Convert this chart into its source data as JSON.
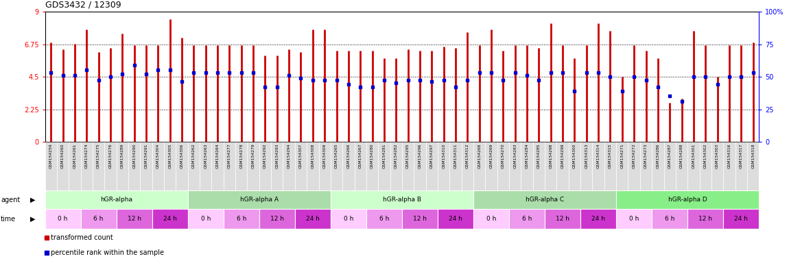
{
  "title": "GDS3432 / 12309",
  "samples": [
    "GSM154259",
    "GSM154260",
    "GSM154261",
    "GSM154274",
    "GSM154275",
    "GSM154276",
    "GSM154289",
    "GSM154290",
    "GSM154291",
    "GSM154304",
    "GSM154305",
    "GSM154306",
    "GSM154262",
    "GSM154263",
    "GSM154264",
    "GSM154277",
    "GSM154278",
    "GSM154279",
    "GSM154292",
    "GSM154293",
    "GSM154294",
    "GSM154307",
    "GSM154308",
    "GSM154309",
    "GSM154265",
    "GSM154266",
    "GSM154267",
    "GSM154280",
    "GSM154281",
    "GSM154282",
    "GSM154295",
    "GSM154296",
    "GSM154297",
    "GSM154310",
    "GSM154311",
    "GSM154312",
    "GSM154268",
    "GSM154269",
    "GSM154270",
    "GSM154283",
    "GSM154284",
    "GSM154285",
    "GSM154298",
    "GSM154299",
    "GSM154300",
    "GSM154313",
    "GSM154314",
    "GSM154315",
    "GSM154271",
    "GSM154272",
    "GSM154273",
    "GSM154286",
    "GSM154287",
    "GSM154288",
    "GSM154301",
    "GSM154302",
    "GSM154303",
    "GSM154316",
    "GSM154317",
    "GSM154318"
  ],
  "red_values": [
    6.9,
    6.4,
    6.8,
    7.8,
    6.2,
    6.5,
    7.5,
    6.7,
    6.7,
    6.7,
    8.5,
    7.2,
    6.7,
    6.7,
    6.7,
    6.7,
    6.7,
    6.7,
    6.0,
    6.0,
    6.4,
    6.2,
    7.8,
    7.8,
    6.3,
    6.3,
    6.3,
    6.3,
    5.8,
    5.8,
    6.4,
    6.3,
    6.3,
    6.6,
    6.5,
    7.6,
    6.7,
    7.8,
    6.3,
    6.7,
    6.7,
    6.5,
    8.2,
    6.7,
    5.8,
    6.7,
    8.2,
    7.7,
    4.5,
    6.7,
    6.3,
    5.8,
    2.7,
    3.0,
    7.7,
    6.7,
    4.5,
    6.7,
    6.7,
    6.9
  ],
  "blue_values": [
    4.8,
    4.6,
    4.6,
    5.0,
    4.3,
    4.5,
    4.7,
    5.3,
    4.7,
    5.0,
    5.0,
    4.2,
    4.8,
    4.8,
    4.8,
    4.8,
    4.8,
    4.8,
    3.8,
    3.8,
    4.6,
    4.4,
    4.3,
    4.3,
    4.3,
    4.0,
    3.8,
    3.8,
    4.3,
    4.1,
    4.3,
    4.3,
    4.2,
    4.3,
    3.8,
    4.3,
    4.8,
    4.8,
    4.3,
    4.8,
    4.6,
    4.3,
    4.8,
    4.8,
    3.5,
    4.8,
    4.8,
    4.5,
    3.5,
    4.5,
    4.3,
    3.8,
    3.2,
    2.8,
    4.5,
    4.5,
    4.0,
    4.5,
    4.5,
    4.8
  ],
  "agents": [
    "hGR-alpha",
    "hGR-alpha A",
    "hGR-alpha B",
    "hGR-alpha C",
    "hGR-alpha D"
  ],
  "agent_spans": [
    12,
    12,
    12,
    12,
    12
  ],
  "times": [
    "0 h",
    "6 h",
    "12 h",
    "24 h"
  ],
  "ylim_left": [
    0,
    9
  ],
  "ylim_right": [
    0,
    100
  ],
  "yticks_left": [
    0,
    2.25,
    4.5,
    6.75,
    9
  ],
  "yticks_right": [
    0,
    25,
    50,
    75,
    100
  ],
  "hlines": [
    2.25,
    4.5,
    6.75
  ],
  "bar_color": "#cc0000",
  "dot_color": "#0000cc",
  "agent_colors": [
    "#ccffcc",
    "#aaddaa",
    "#ccffcc",
    "#aaddaa",
    "#88ee88"
  ],
  "time_colors": [
    "#ffccff",
    "#ee99ee",
    "#dd66dd",
    "#cc33cc"
  ]
}
